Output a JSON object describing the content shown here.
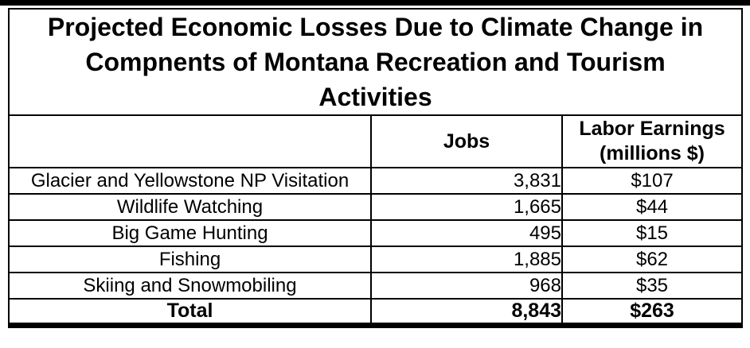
{
  "colors": {
    "background": "#ffffff",
    "border": "#000000",
    "text": "#000000"
  },
  "table": {
    "title": "Projected Economic Losses Due to Climate Change in Compnents of Montana Recreation and Tourism Activities",
    "title_lines": [
      "Projected Economic Losses Due to Climate Change in",
      "Compnents of Montana Recreation and Tourism",
      "Activities"
    ],
    "header": {
      "activity": "",
      "jobs": "Jobs",
      "labor_earnings_line1": "Labor Earnings",
      "labor_earnings_line2": "(millions $)"
    },
    "rows": [
      {
        "activity": "Glacier and Yellowstone NP Visitation",
        "jobs": "3,831",
        "labor_earnings": "$107"
      },
      {
        "activity": "Wildlife Watching",
        "jobs": "1,665",
        "labor_earnings": "$44"
      },
      {
        "activity": "Big Game Hunting",
        "jobs": "495",
        "labor_earnings": "$15"
      },
      {
        "activity": "Fishing",
        "jobs": "1,885",
        "labor_earnings": "$62"
      },
      {
        "activity": "Skiing and Snowmobiling",
        "jobs": "968",
        "labor_earnings": "$35"
      }
    ],
    "total_row": {
      "label": "Total",
      "jobs": "8,843",
      "labor_earnings": "$263"
    }
  },
  "chart_data": {
    "type": "table",
    "title": "Projected Economic Losses Due to Climate Change in Compnents of Montana Recreation and Tourism Activities",
    "columns": [
      "",
      "Jobs",
      "Labor Earnings (millions $)"
    ],
    "rows": [
      [
        "Glacier and Yellowstone NP Visitation",
        3831,
        107
      ],
      [
        "Wildlife Watching",
        1665,
        44
      ],
      [
        "Big Game Hunting",
        495,
        15
      ],
      [
        "Fishing",
        1885,
        62
      ],
      [
        "Skiing and Snowmobiling",
        968,
        35
      ]
    ],
    "total": [
      "Total",
      8843,
      263
    ]
  }
}
